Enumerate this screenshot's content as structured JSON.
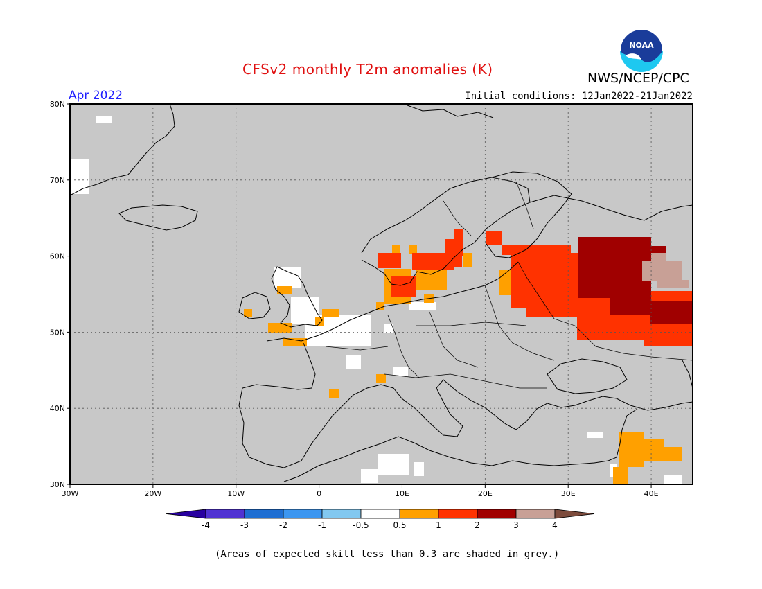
{
  "header": {
    "title": "CFSv2 monthly T2m anomalies (K)",
    "agency": "NWS/NCEP/CPC",
    "logo_text": "NOAA",
    "month": "Apr 2022",
    "initial_conditions": "Initial conditions: 12Jan2022-21Jan2022"
  },
  "footnote": "(Areas of expected skill less than 0.3 are shaded in grey.)",
  "map": {
    "lon_range": [
      -30,
      45
    ],
    "lat_range": [
      30,
      80
    ],
    "lat_ticks": [
      {
        "value": 80,
        "label": "80N"
      },
      {
        "value": 70,
        "label": "70N"
      },
      {
        "value": 60,
        "label": "60N"
      },
      {
        "value": 50,
        "label": "50N"
      },
      {
        "value": 40,
        "label": "40N"
      },
      {
        "value": 30,
        "label": "30N"
      }
    ],
    "lon_ticks": [
      {
        "value": -30,
        "label": "30W"
      },
      {
        "value": -20,
        "label": "20W"
      },
      {
        "value": -10,
        "label": "10W"
      },
      {
        "value": 0,
        "label": "0"
      },
      {
        "value": 10,
        "label": "10E"
      },
      {
        "value": 20,
        "label": "20E"
      },
      {
        "value": 30,
        "label": "30E"
      },
      {
        "value": 40,
        "label": "40E"
      }
    ],
    "grid": true,
    "colors": {
      "grey_low_skill": "#c8c8c8",
      "white_neutral": "#ffffff",
      "orange_0.5_1": "#ffa000",
      "red_1_2": "#ff3200",
      "darkred_2_3": "#a00000",
      "tan_3_4": "#c8a096",
      "coast": "#000000"
    }
  },
  "colorbar": {
    "boundaries": [
      "-4",
      "-3",
      "-2",
      "-1",
      "-0.5",
      "0.5",
      "1",
      "2",
      "3",
      "4"
    ],
    "colors": [
      "#2800a0",
      "#5032d2",
      "#1e6ed2",
      "#3c96f0",
      "#82c8f0",
      "#ffffff",
      "#ffa000",
      "#ff3200",
      "#a00000",
      "#c8a096",
      "#7d4b3c"
    ]
  }
}
